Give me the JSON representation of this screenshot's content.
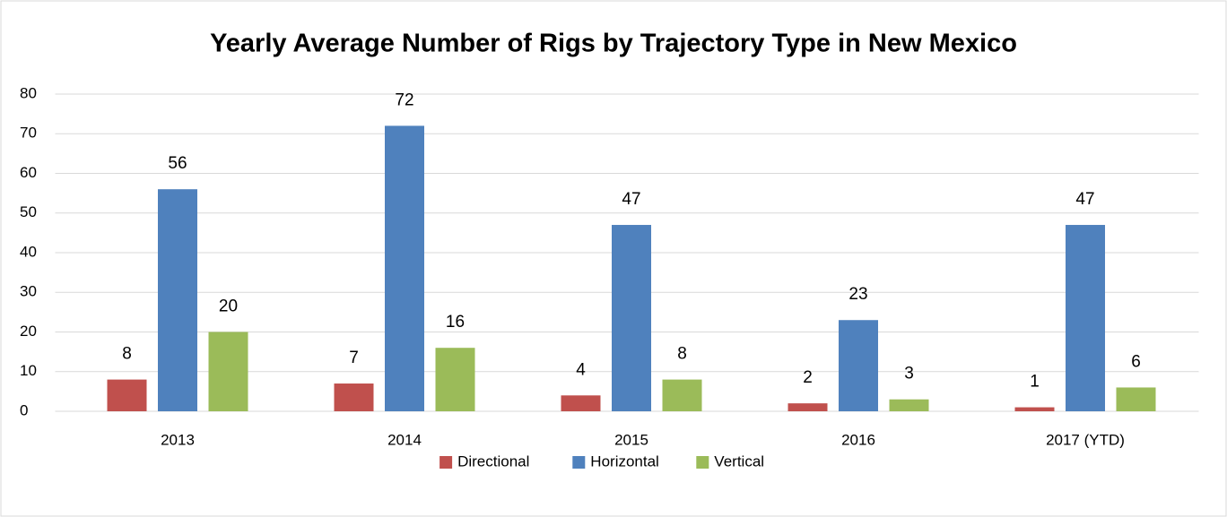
{
  "chart_data": {
    "type": "bar",
    "title": "Yearly Average Number of Rigs by Trajectory Type in New Mexico",
    "categories": [
      "2013",
      "2014",
      "2015",
      "2016",
      "2017 (YTD)"
    ],
    "series": [
      {
        "name": "Directional",
        "color": "#c0504d",
        "values": [
          8,
          7,
          4,
          2,
          1
        ]
      },
      {
        "name": "Horizontal",
        "color": "#4f81bd",
        "values": [
          56,
          72,
          47,
          23,
          47
        ]
      },
      {
        "name": "Vertical",
        "color": "#9bbb59",
        "values": [
          20,
          16,
          8,
          3,
          6
        ]
      }
    ],
    "ylim": [
      0,
      80
    ],
    "yticks": [
      0,
      10,
      20,
      30,
      40,
      50,
      60,
      70,
      80
    ],
    "grid": true,
    "legend": "bottom"
  }
}
